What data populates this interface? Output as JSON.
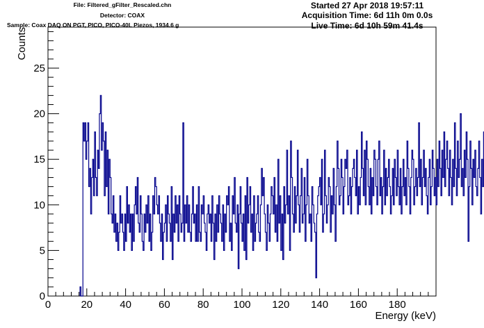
{
  "header": {
    "file": "File: Filtered_gFilter_Rescaled.chn",
    "detector": "Detector: COAX",
    "sample": "Sample: Coax DAQ ON PGT, PICO, PICO-40L Piezos, 1934.6 g",
    "started": "Started 27 Apr 2018 19:57:11",
    "acquisition_time": "Acquisition Time: 6d 11h 0m 0.0s",
    "live_time": "Live Time: 6d 10h 59m 41.4s"
  },
  "colors": {
    "histogram": "#00008b",
    "axis": "#000000"
  },
  "chart_data": {
    "type": "histogram",
    "title": "",
    "xlabel": "Energy (keV)",
    "ylabel": "Counts",
    "xlim": [
      0,
      200
    ],
    "ylim": [
      0,
      29.5
    ],
    "x_ticks": [
      0,
      20,
      40,
      60,
      80,
      100,
      120,
      140,
      160,
      180
    ],
    "y_ticks": [
      0,
      5,
      10,
      15,
      20,
      25
    ],
    "bin_width": 0.5,
    "bins_start": 16.5,
    "values": [
      1,
      0,
      0,
      19,
      17,
      19,
      15,
      17,
      19,
      12,
      14,
      9,
      13,
      15,
      11,
      18,
      13,
      11,
      16,
      14,
      20,
      22,
      16,
      19,
      17,
      11,
      18,
      12,
      16,
      9,
      15,
      13,
      9,
      8,
      11,
      7,
      9,
      6,
      8,
      5,
      7,
      11,
      8,
      9,
      7,
      5,
      9,
      6,
      12,
      8,
      10,
      7,
      9,
      5,
      9,
      6,
      10,
      12,
      9,
      13,
      8,
      7,
      11,
      9,
      6,
      5,
      9,
      7,
      10,
      8,
      11,
      6,
      9,
      5,
      7,
      11,
      9,
      13,
      12,
      10,
      9,
      11,
      8,
      6,
      9,
      4,
      7,
      8,
      10,
      6,
      11,
      9,
      8,
      6,
      12,
      4,
      9,
      7,
      11,
      8,
      10,
      6,
      11,
      9,
      7,
      8,
      19,
      6,
      10,
      8,
      11,
      7,
      10,
      7,
      6,
      9,
      12,
      8,
      9,
      6,
      10,
      6,
      12,
      7,
      6,
      10,
      9,
      11,
      8,
      7,
      5,
      9,
      10,
      8,
      9,
      6,
      11,
      8,
      4,
      9,
      6,
      10,
      7,
      11,
      9,
      8,
      6,
      10,
      5,
      9,
      7,
      11,
      10,
      12,
      6,
      8,
      5,
      11,
      9,
      13,
      8,
      7,
      10,
      3,
      9,
      12,
      8,
      6,
      9,
      5,
      11,
      4,
      13,
      8,
      10,
      12,
      7,
      9,
      5,
      11,
      6,
      8,
      9,
      11,
      7,
      6,
      10,
      14,
      11,
      13,
      9,
      7,
      5,
      10,
      8,
      6,
      9,
      12,
      11,
      9,
      13,
      7,
      10,
      6,
      15,
      8,
      11,
      5,
      9,
      4,
      12,
      8,
      10,
      16,
      9,
      11,
      5,
      17,
      13,
      9,
      7,
      12,
      8,
      11,
      16,
      10,
      7,
      11,
      14,
      8,
      9,
      13,
      6,
      10,
      15,
      11,
      8,
      9,
      6,
      12,
      10,
      8,
      7,
      2,
      9,
      11,
      12,
      13,
      10,
      15,
      7,
      9,
      16,
      11,
      8,
      10,
      13,
      12,
      7,
      11,
      9,
      14,
      10,
      6,
      12,
      17,
      14,
      10,
      11,
      15,
      13,
      9,
      12,
      15,
      14,
      16,
      10,
      11,
      13,
      9,
      12,
      14,
      15,
      13,
      11,
      16,
      9,
      12,
      10,
      13,
      18,
      14,
      11,
      16,
      10,
      17,
      15,
      12,
      10,
      14,
      9,
      13,
      11,
      16,
      15,
      12,
      10,
      15,
      17,
      11,
      13,
      9,
      12,
      16,
      10,
      14,
      11,
      13,
      15,
      12,
      9,
      11,
      14,
      10,
      15,
      13,
      11,
      16,
      12,
      10,
      14,
      9,
      12,
      15,
      11,
      13,
      10,
      17,
      14,
      12,
      9,
      13,
      16,
      15,
      10,
      12,
      14,
      11,
      13,
      19,
      12,
      15,
      10,
      13,
      16,
      12,
      14,
      11,
      9,
      13,
      15,
      10,
      12,
      16,
      14,
      11,
      13,
      10,
      15,
      12,
      17,
      14,
      11,
      16,
      13,
      18,
      12,
      15,
      17,
      14,
      11,
      16,
      13,
      10,
      15,
      12,
      19,
      14,
      11,
      17,
      13,
      15,
      20,
      12,
      14,
      11,
      16,
      13,
      18,
      15,
      6,
      12,
      17,
      14,
      10,
      15,
      13,
      16,
      12,
      11,
      14,
      17,
      13,
      9,
      15,
      12,
      18,
      16,
      14,
      10,
      13,
      15,
      11,
      17,
      12,
      14,
      16,
      13,
      9,
      15,
      12,
      14,
      11,
      18,
      13,
      15,
      10,
      16,
      17,
      14,
      12,
      9,
      15,
      13,
      11,
      16,
      14,
      12,
      20,
      13,
      15,
      18,
      11,
      16,
      12,
      21,
      14,
      13,
      17,
      15,
      11,
      19,
      16,
      14,
      12,
      18,
      15,
      13,
      11,
      16,
      14,
      17,
      12,
      15,
      19,
      13,
      16,
      12,
      14,
      18,
      11,
      15,
      17,
      13,
      14,
      16,
      12,
      19,
      15,
      13,
      11,
      4,
      14,
      17,
      12,
      16,
      18,
      15,
      13,
      17,
      14,
      12,
      16,
      13,
      15,
      19,
      14,
      12,
      17,
      15,
      20,
      13,
      16,
      18,
      14,
      12,
      21,
      15,
      17,
      13,
      16,
      14,
      19,
      12,
      15,
      18,
      14,
      13,
      16,
      11,
      17,
      15,
      12,
      19,
      14,
      16,
      13,
      18,
      15,
      12,
      17,
      14,
      16,
      20,
      13,
      15,
      11,
      18,
      14,
      16,
      12,
      19,
      15,
      17,
      13,
      14,
      16,
      12,
      18,
      15,
      13,
      17,
      14,
      16,
      11,
      15,
      19,
      13,
      17,
      14,
      16,
      12,
      18,
      15,
      14,
      13,
      11,
      16,
      17,
      5,
      14,
      25,
      15,
      16,
      12,
      19,
      11,
      17,
      14,
      13,
      15,
      16,
      18,
      12,
      15,
      14,
      17,
      11,
      16,
      13,
      15,
      19,
      14,
      17,
      12,
      15,
      13,
      16,
      18,
      14,
      12,
      17,
      15,
      13,
      11,
      16,
      14,
      12,
      15,
      17,
      13,
      14,
      16,
      12,
      15,
      20,
      13,
      14,
      11,
      16,
      17,
      14,
      12,
      28,
      20,
      14,
      17,
      9,
      14,
      13,
      6,
      8,
      12,
      15,
      10,
      18,
      14,
      16,
      13,
      15,
      9,
      13,
      17,
      11,
      15,
      10,
      14,
      12,
      16,
      13,
      9,
      15,
      12,
      11,
      16,
      10,
      14,
      13,
      5,
      12,
      9,
      15,
      11,
      13,
      10,
      12
    ]
  }
}
